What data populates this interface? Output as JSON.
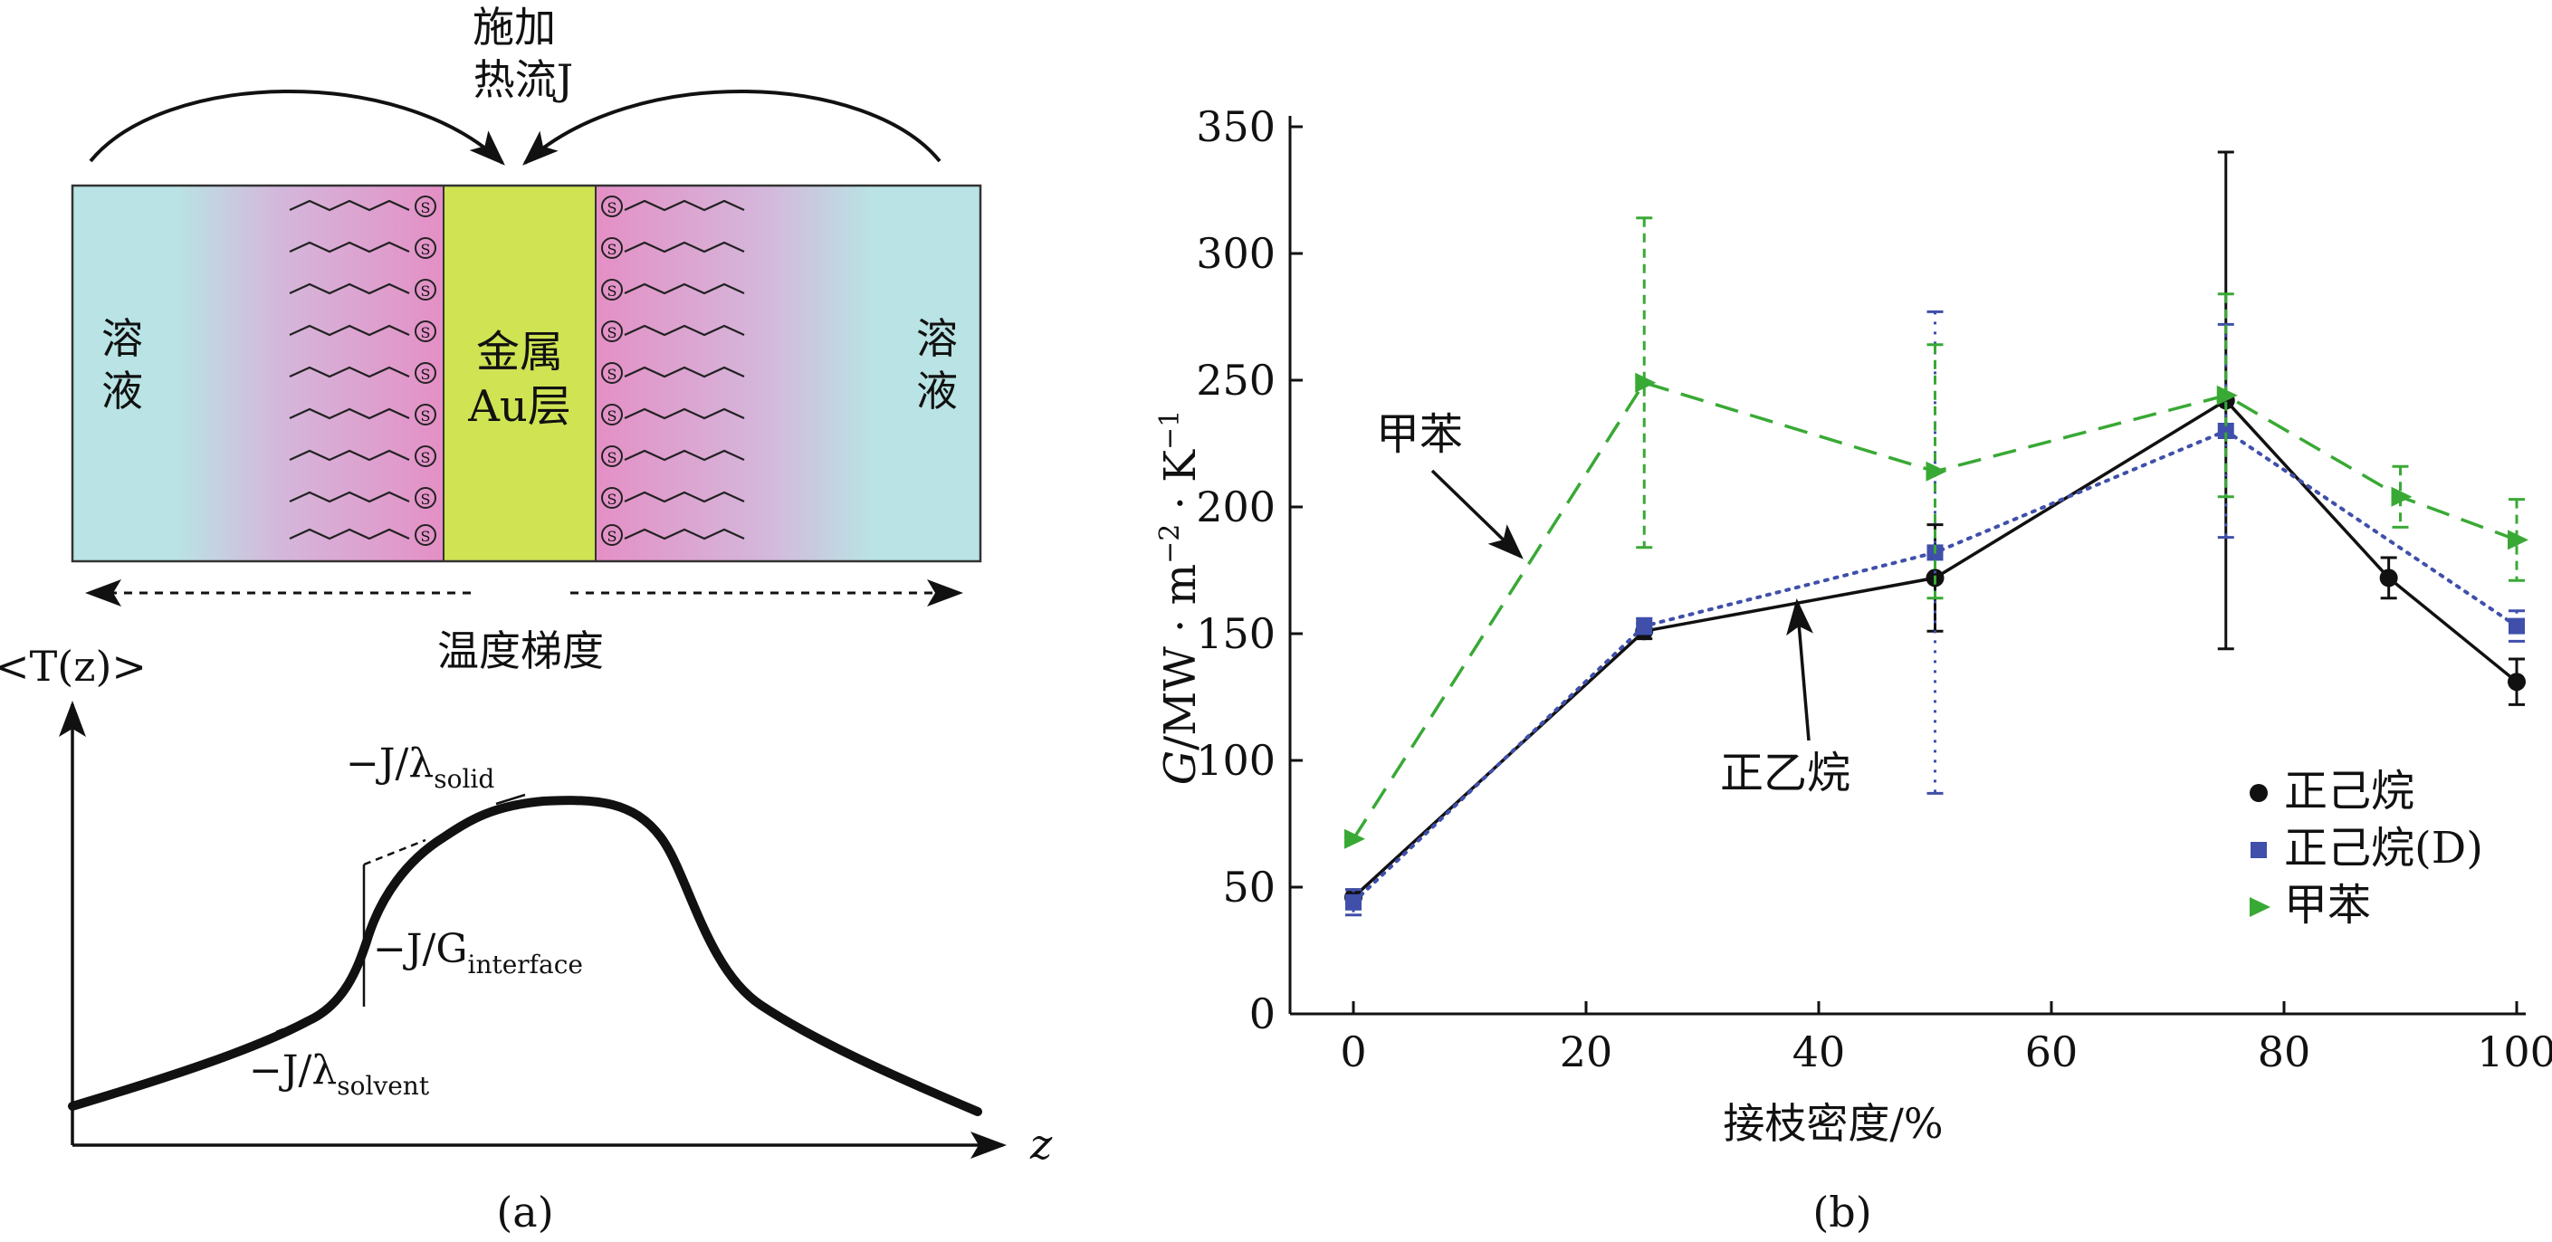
{
  "panel_a": {
    "heat_flux_label_line1": "施加",
    "heat_flux_label_line2": "热流J",
    "left_region_line1": "溶",
    "left_region_line2": "液",
    "right_region_line1": "溶",
    "right_region_line2": "液",
    "metal_line1": "金属",
    "metal_line2": "Au层",
    "sulfur_symbol": "S",
    "temperature_gradient_label": "温度梯度",
    "y_axis_label": "<T(z)>",
    "x_axis_label": "z",
    "label_solid": "−J/λ",
    "label_solid_sub": "solid",
    "label_interface": "−J/G",
    "label_interface_sub": "interface",
    "label_solvent": "−J/λ",
    "label_solvent_sub": "solvent",
    "caption": "(a)",
    "colors": {
      "solvent": "#b9e3e4",
      "ligand": "#e48fc5",
      "metal": "#cfe353",
      "profile": "#111111"
    }
  },
  "chart_data": {
    "type": "line",
    "caption": "(b)",
    "xlabel": "接枝密度/%",
    "ylabel_parts": [
      "G",
      "/MW · m",
      "−2",
      " · K",
      "−1"
    ],
    "xlim": [
      0,
      100
    ],
    "ylim": [
      0,
      350
    ],
    "x_ticks": [
      0,
      20,
      40,
      60,
      80,
      100
    ],
    "y_ticks": [
      0,
      50,
      100,
      150,
      200,
      250,
      300,
      350
    ],
    "grid": false,
    "legend_position": "bottom-right",
    "series": [
      {
        "name": "正己烷",
        "marker": "circle",
        "line": "solid",
        "color": "#111111",
        "x": [
          0,
          25,
          50,
          75,
          89,
          100
        ],
        "y": [
          46,
          151,
          172,
          242,
          172,
          131
        ],
        "err": [
          3,
          3,
          21,
          98,
          8,
          9
        ]
      },
      {
        "name": "正己烷(D)",
        "marker": "square",
        "line": "dotted",
        "color": "#3f4faa",
        "x": [
          0,
          25,
          50,
          75,
          100
        ],
        "y": [
          44,
          153,
          182,
          230,
          153
        ],
        "err": [
          5,
          3,
          95,
          42,
          6
        ]
      },
      {
        "name": "甲苯",
        "marker": "triangle",
        "line": "dashed",
        "color": "#39a935",
        "x": [
          0,
          25,
          50,
          75,
          90,
          100
        ],
        "y": [
          69,
          249,
          214,
          244,
          204,
          187
        ],
        "err": [
          0,
          65,
          50,
          40,
          12,
          16
        ]
      }
    ],
    "annotations": [
      {
        "text": "甲苯",
        "target_series": "甲苯"
      },
      {
        "text": "正乙烷",
        "target_series": "正己烷"
      }
    ]
  }
}
